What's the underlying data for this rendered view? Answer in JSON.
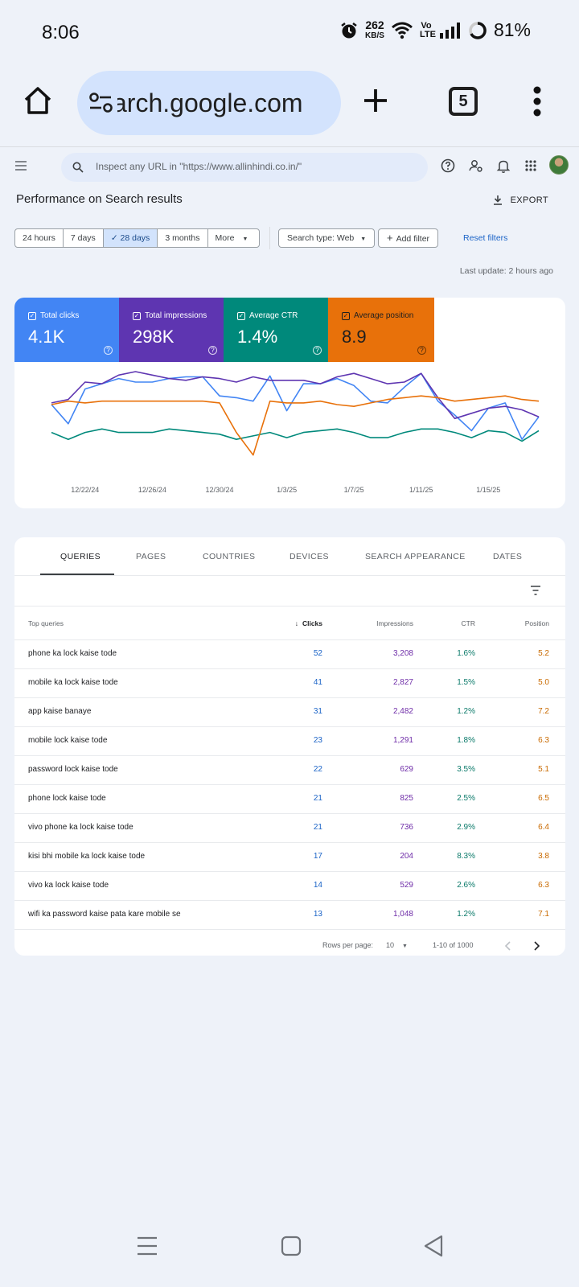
{
  "status": {
    "time": "8:06",
    "speed_value": "262",
    "speed_unit": "KB/S",
    "network": "Vo LTE",
    "battery": "81%"
  },
  "browser": {
    "url": "arch.google.com",
    "tab_count": "5"
  },
  "gsc": {
    "search_placeholder": "Inspect any URL in \"https://www.allinhindi.co.in/\"",
    "title": "Performance on Search results",
    "export_label": "EXPORT",
    "ranges": [
      "24 hours",
      "7 days",
      "28 days",
      "3 months",
      "More"
    ],
    "active_range": "28 days",
    "search_type": "Search type: Web",
    "add_filter": "Add filter",
    "reset_filters": "Reset filters",
    "last_update": "Last update: 2 hours ago"
  },
  "metrics": [
    {
      "label": "Total clicks",
      "value": "4.1K",
      "color": "#4285f4"
    },
    {
      "label": "Total impressions",
      "value": "298K",
      "color": "#5e35b1"
    },
    {
      "label": "Average CTR",
      "value": "1.4%",
      "color": "#00897b"
    },
    {
      "label": "Average position",
      "value": "8.9",
      "color": "#e8710a"
    }
  ],
  "chart_data": {
    "type": "line",
    "x": [
      "12/20/24",
      "12/21/24",
      "12/22/24",
      "12/23/24",
      "12/24/24",
      "12/25/24",
      "12/26/24",
      "12/27/24",
      "12/28/24",
      "12/29/24",
      "12/30/24",
      "12/31/24",
      "1/1/25",
      "1/2/25",
      "1/3/25",
      "1/4/25",
      "1/5/25",
      "1/6/25",
      "1/7/25",
      "1/8/25",
      "1/9/25",
      "1/10/25",
      "1/11/25",
      "1/12/25",
      "1/13/25",
      "1/14/25",
      "1/15/25",
      "1/16/25",
      "1/17/25",
      "1/18/25"
    ],
    "x_tick_labels": [
      "12/22/24",
      "12/26/24",
      "12/30/24",
      "1/3/25",
      "1/7/25",
      "1/11/25",
      "1/15/25"
    ],
    "series": [
      {
        "name": "Total clicks",
        "color": "#4285f4",
        "values": [
          0.62,
          0.4,
          0.8,
          0.86,
          0.92,
          0.88,
          0.88,
          0.92,
          0.94,
          0.94,
          0.72,
          0.7,
          0.66,
          0.95,
          0.55,
          0.86,
          0.86,
          0.92,
          0.84,
          0.66,
          0.64,
          0.82,
          0.98,
          0.66,
          0.5,
          0.32,
          0.58,
          0.64,
          0.22,
          0.48
        ]
      },
      {
        "name": "Total impressions",
        "color": "#5e35b1",
        "values": [
          0.64,
          0.68,
          0.88,
          0.86,
          0.96,
          1.0,
          0.96,
          0.92,
          0.9,
          0.94,
          0.92,
          0.88,
          0.94,
          0.9,
          0.9,
          0.9,
          0.86,
          0.94,
          0.98,
          0.92,
          0.86,
          0.88,
          0.98,
          0.7,
          0.46,
          0.52,
          0.58,
          0.6,
          0.56,
          0.48
        ]
      },
      {
        "name": "Average CTR",
        "color": "#00897b",
        "values": [
          0.3,
          0.22,
          0.3,
          0.34,
          0.3,
          0.3,
          0.3,
          0.34,
          0.32,
          0.3,
          0.28,
          0.22,
          0.26,
          0.3,
          0.24,
          0.3,
          0.32,
          0.34,
          0.3,
          0.24,
          0.24,
          0.3,
          0.34,
          0.34,
          0.3,
          0.24,
          0.32,
          0.3,
          0.2,
          0.32
        ]
      },
      {
        "name": "Average position",
        "color": "#e8710a",
        "values": [
          0.62,
          0.66,
          0.64,
          0.66,
          0.66,
          0.66,
          0.66,
          0.66,
          0.66,
          0.66,
          0.64,
          0.3,
          0.04,
          0.66,
          0.64,
          0.64,
          0.66,
          0.62,
          0.6,
          0.64,
          0.68,
          0.7,
          0.72,
          0.7,
          0.66,
          0.68,
          0.7,
          0.72,
          0.68,
          0.66
        ]
      }
    ],
    "grid": false
  },
  "table": {
    "tabs": [
      "QUERIES",
      "PAGES",
      "COUNTRIES",
      "DEVICES",
      "SEARCH APPEARANCE",
      "DATES"
    ],
    "headers": {
      "query": "Top queries",
      "clicks": "Clicks",
      "impressions": "Impressions",
      "ctr": "CTR",
      "position": "Position"
    },
    "rows": [
      {
        "query": "phone ka lock kaise tode",
        "clicks": "52",
        "impressions": "3,208",
        "ctr": "1.6%",
        "position": "5.2"
      },
      {
        "query": "mobile ka lock kaise tode",
        "clicks": "41",
        "impressions": "2,827",
        "ctr": "1.5%",
        "position": "5.0"
      },
      {
        "query": "app kaise banaye",
        "clicks": "31",
        "impressions": "2,482",
        "ctr": "1.2%",
        "position": "7.2"
      },
      {
        "query": "mobile lock kaise tode",
        "clicks": "23",
        "impressions": "1,291",
        "ctr": "1.8%",
        "position": "6.3"
      },
      {
        "query": "password lock kaise tode",
        "clicks": "22",
        "impressions": "629",
        "ctr": "3.5%",
        "position": "5.1"
      },
      {
        "query": "phone lock kaise tode",
        "clicks": "21",
        "impressions": "825",
        "ctr": "2.5%",
        "position": "6.5"
      },
      {
        "query": "vivo phone ka lock kaise tode",
        "clicks": "21",
        "impressions": "736",
        "ctr": "2.9%",
        "position": "6.4"
      },
      {
        "query": "kisi bhi mobile ka lock kaise tode",
        "clicks": "17",
        "impressions": "204",
        "ctr": "8.3%",
        "position": "3.8"
      },
      {
        "query": "vivo ka lock kaise tode",
        "clicks": "14",
        "impressions": "529",
        "ctr": "2.6%",
        "position": "6.3"
      },
      {
        "query": "wifi ka password kaise pata kare mobile se",
        "clicks": "13",
        "impressions": "1,048",
        "ctr": "1.2%",
        "position": "7.1"
      }
    ],
    "rows_per_page_label": "Rows per page:",
    "rows_per_page": "10",
    "range_label": "1-10 of 1000"
  }
}
